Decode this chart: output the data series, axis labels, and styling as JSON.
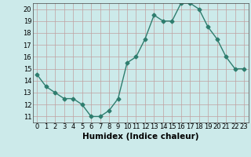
{
  "x": [
    0,
    1,
    2,
    3,
    4,
    5,
    6,
    7,
    8,
    9,
    10,
    11,
    12,
    13,
    14,
    15,
    16,
    17,
    18,
    19,
    20,
    21,
    22,
    23
  ],
  "y": [
    14.5,
    13.5,
    13.0,
    12.5,
    12.5,
    12.0,
    11.0,
    11.0,
    11.5,
    12.5,
    15.5,
    16.0,
    17.5,
    19.5,
    19.0,
    19.0,
    20.5,
    20.5,
    20.0,
    18.5,
    17.5,
    16.0,
    15.0,
    15.0
  ],
  "line_color": "#2e7d6e",
  "marker": "D",
  "marker_size": 2.5,
  "line_width": 1.0,
  "bg_color": "#cceaea",
  "grid_color": "#c0a0a0",
  "xlabel": "Humidex (Indice chaleur)",
  "xlim": [
    -0.5,
    23.5
  ],
  "ylim": [
    10.5,
    20.5
  ],
  "yticks": [
    11,
    12,
    13,
    14,
    15,
    16,
    17,
    18,
    19,
    20
  ],
  "xtick_labels": [
    "0",
    "1",
    "2",
    "3",
    "4",
    "5",
    "6",
    "7",
    "8",
    "9",
    "10",
    "11",
    "12",
    "13",
    "14",
    "15",
    "16",
    "17",
    "18",
    "19",
    "20",
    "21",
    "22",
    "23"
  ],
  "tick_fontsize": 6,
  "xlabel_fontsize": 7.5
}
